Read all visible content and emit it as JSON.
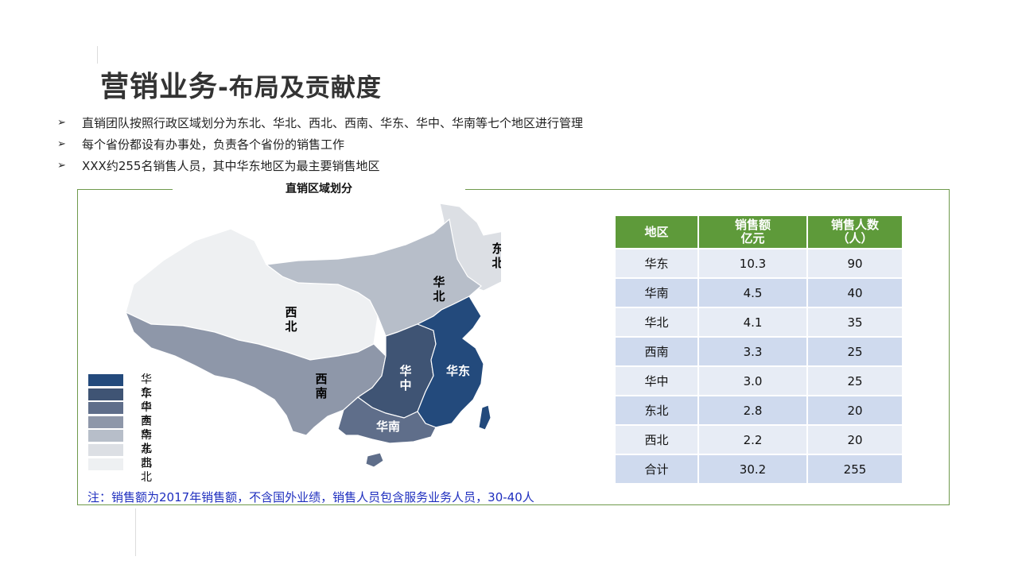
{
  "title": {
    "main": "营销业务",
    "sub": "-布局及贡献度"
  },
  "bullets": [
    "直销团队按照行政区域划分为东北、华北、西北、西南、华东、华中、华南等七个地区进行管理",
    "每个省份都设有办事处，负责各个省份的销售工作",
    "XXX约255名销售人员，其中华东地区为最主要销售地区"
  ],
  "bullet_marker": "➢",
  "map": {
    "title": "直销区域划分",
    "region_labels": {
      "dongbei": "东\n北",
      "huabei": "华\n北",
      "xibei": "西\n北",
      "xinan": "西\n南",
      "huazhong": "华\n中",
      "huadong": "华东",
      "huanan": "华南"
    },
    "region_colors": {
      "huadong": "#234a7c",
      "huazhong": "#3f5474",
      "huanan": "#5f6e8a",
      "xinan": "#8e97a9",
      "huabei": "#b7bec9",
      "dongbei": "#dcdfe4",
      "xibei": "#eef0f2"
    },
    "legend": [
      {
        "label": "华东",
        "color": "#234a7c"
      },
      {
        "label": "华中",
        "color": "#3f5474"
      },
      {
        "label": "华南",
        "color": "#5f6e8a"
      },
      {
        "label": "西南",
        "color": "#8e97a9"
      },
      {
        "label": "华北",
        "color": "#b7bec9"
      },
      {
        "label": "东北",
        "color": "#dcdfe4"
      },
      {
        "label": "西北",
        "color": "#eef0f2"
      }
    ]
  },
  "table": {
    "headers": [
      "地区",
      "销售额\n亿元",
      "销售人数\n（人）"
    ],
    "rows": [
      [
        "华东",
        "10.3",
        "90"
      ],
      [
        "华南",
        "4.5",
        "40"
      ],
      [
        "华北",
        "4.1",
        "35"
      ],
      [
        "西南",
        "3.3",
        "25"
      ],
      [
        "华中",
        "3.0",
        "25"
      ],
      [
        "东北",
        "2.8",
        "20"
      ],
      [
        "西北",
        "2.2",
        "20"
      ],
      [
        "合计",
        "30.2",
        "255"
      ]
    ]
  },
  "note": "注：销售额为2017年销售额，不含国外业绩，销售人员包含服务业务人员，30-40人",
  "colors": {
    "header_green": "#5e9a3a",
    "border_green": "#6f9a4c",
    "note_blue": "#1f2fbf"
  }
}
